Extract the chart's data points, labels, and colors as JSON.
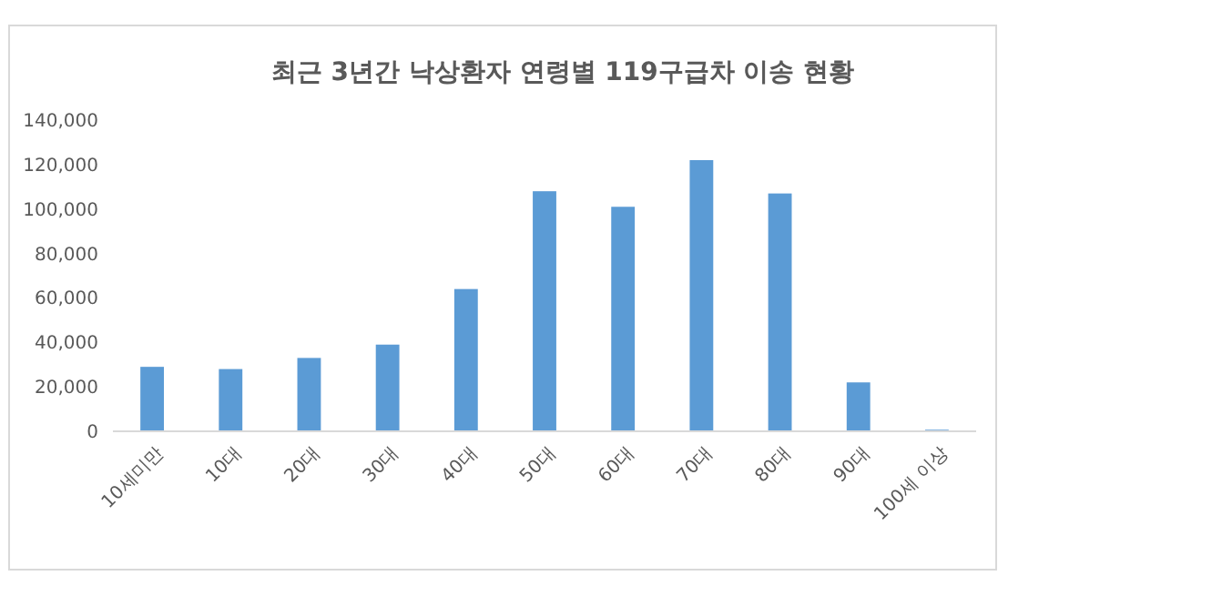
{
  "chart_data": {
    "type": "bar",
    "title": "최근 3년간 낙상환자 연령별 119구급차 이송 현황",
    "categories": [
      "10세미만",
      "10대",
      "20대",
      "30대",
      "40대",
      "50대",
      "60대",
      "70대",
      "80대",
      "90대",
      "100세 이상"
    ],
    "values": [
      29000,
      28000,
      33000,
      39000,
      64000,
      108000,
      101000,
      122000,
      107000,
      22000,
      700
    ],
    "color": "#5b9bd5",
    "ylim": [
      0,
      140000
    ],
    "yticks": [
      {
        "value": 0,
        "label": "0"
      },
      {
        "value": 20000,
        "label": "20,000"
      },
      {
        "value": 40000,
        "label": "40,000"
      },
      {
        "value": 60000,
        "label": "60,000"
      },
      {
        "value": 80000,
        "label": "80,000"
      },
      {
        "value": 100000,
        "label": "100,000"
      },
      {
        "value": 120000,
        "label": "120,000"
      },
      {
        "value": 140000,
        "label": "140,000"
      }
    ],
    "grid": false
  }
}
